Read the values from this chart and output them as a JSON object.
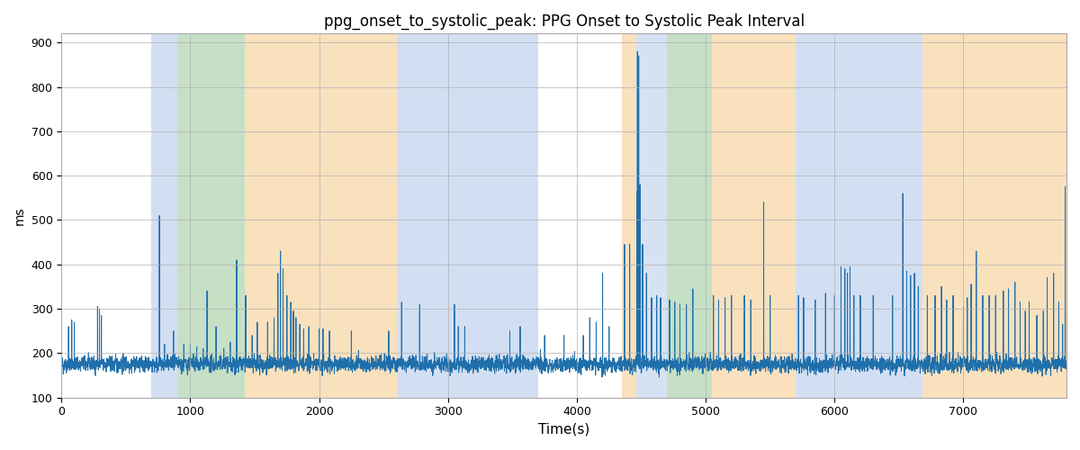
{
  "title": "ppg_onset_to_systolic_peak: PPG Onset to Systolic Peak Interval",
  "xlabel": "Time(s)",
  "ylabel": "ms",
  "ylim": [
    100,
    920
  ],
  "xlim": [
    0,
    7800
  ],
  "yticks": [
    100,
    200,
    300,
    400,
    500,
    600,
    700,
    800,
    900
  ],
  "xticks": [
    0,
    1000,
    2000,
    3000,
    4000,
    5000,
    6000,
    7000
  ],
  "line_color": "#1f6fab",
  "line_width": 0.7,
  "background_color": "#ffffff",
  "grid_color": "#b0b0b0",
  "figsize": [
    12,
    5
  ],
  "dpi": 100,
  "title_fontsize": 12,
  "colored_bands": [
    {
      "xmin": 700,
      "xmax": 900,
      "color": "#aec6e8",
      "alpha": 0.55
    },
    {
      "xmin": 900,
      "xmax": 1420,
      "color": "#98c898",
      "alpha": 0.55
    },
    {
      "xmin": 1420,
      "xmax": 2600,
      "color": "#f5c98a",
      "alpha": 0.55
    },
    {
      "xmin": 2600,
      "xmax": 3700,
      "color": "#aec6e8",
      "alpha": 0.55
    },
    {
      "xmin": 4350,
      "xmax": 4460,
      "color": "#f5c98a",
      "alpha": 0.55
    },
    {
      "xmin": 4460,
      "xmax": 4700,
      "color": "#aec6e8",
      "alpha": 0.5
    },
    {
      "xmin": 4700,
      "xmax": 5050,
      "color": "#98c898",
      "alpha": 0.55
    },
    {
      "xmin": 5050,
      "xmax": 5700,
      "color": "#f5c98a",
      "alpha": 0.55
    },
    {
      "xmin": 5700,
      "xmax": 6680,
      "color": "#aec6e8",
      "alpha": 0.55
    },
    {
      "xmin": 6680,
      "xmax": 7800,
      "color": "#f5c98a",
      "alpha": 0.55
    }
  ],
  "seed": 42,
  "n_points": 7800,
  "base_value": 175,
  "noise_std": 12,
  "smooth_size": 2
}
